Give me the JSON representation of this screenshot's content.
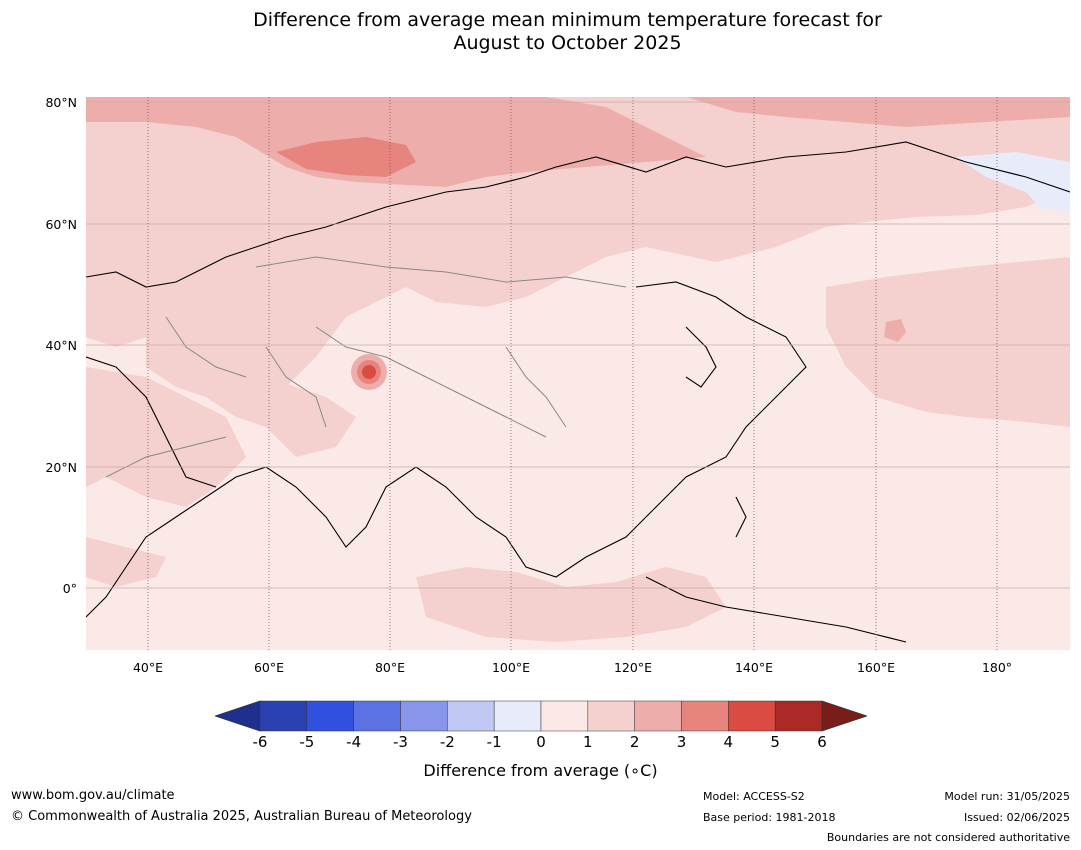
{
  "title_line1": "Difference from average mean minimum temperature forecast for",
  "title_line2": "August to October 2025",
  "lat_labels": [
    "80°N",
    "60°N",
    "40°N",
    "20°N",
    "0°"
  ],
  "lon_labels": [
    "40°E",
    "60°E",
    "80°E",
    "100°E",
    "120°E",
    "140°E",
    "160°E",
    "180°"
  ],
  "colorbar": {
    "ticks": [
      "-6",
      "-5",
      "-4",
      "-3",
      "-2",
      "-1",
      "0",
      "1",
      "2",
      "3",
      "4",
      "5",
      "6"
    ],
    "colors": [
      "#1f2f8f",
      "#2a3fb0",
      "#3150e0",
      "#5c72e2",
      "#8796ea",
      "#c1c8f4",
      "#e8ebfa",
      "#fbe9e7",
      "#f4d1cf",
      "#edaeab",
      "#e6847d",
      "#da4b42",
      "#ab2a25",
      "#7a1d19"
    ],
    "label": "Difference from average (∘C)"
  },
  "footer": {
    "website": "www.bom.gov.au/climate",
    "copyright": "© Commonwealth of Australia 2025, Australian Bureau of Meteorology",
    "model": "Model: ACCESS-S2",
    "base_period": "Base period: 1981-2018",
    "model_run": "Model run: 31/05/2025",
    "issued": "Issued: 02/06/2025",
    "disclaimer": "Boundaries are not considered authoritative"
  }
}
